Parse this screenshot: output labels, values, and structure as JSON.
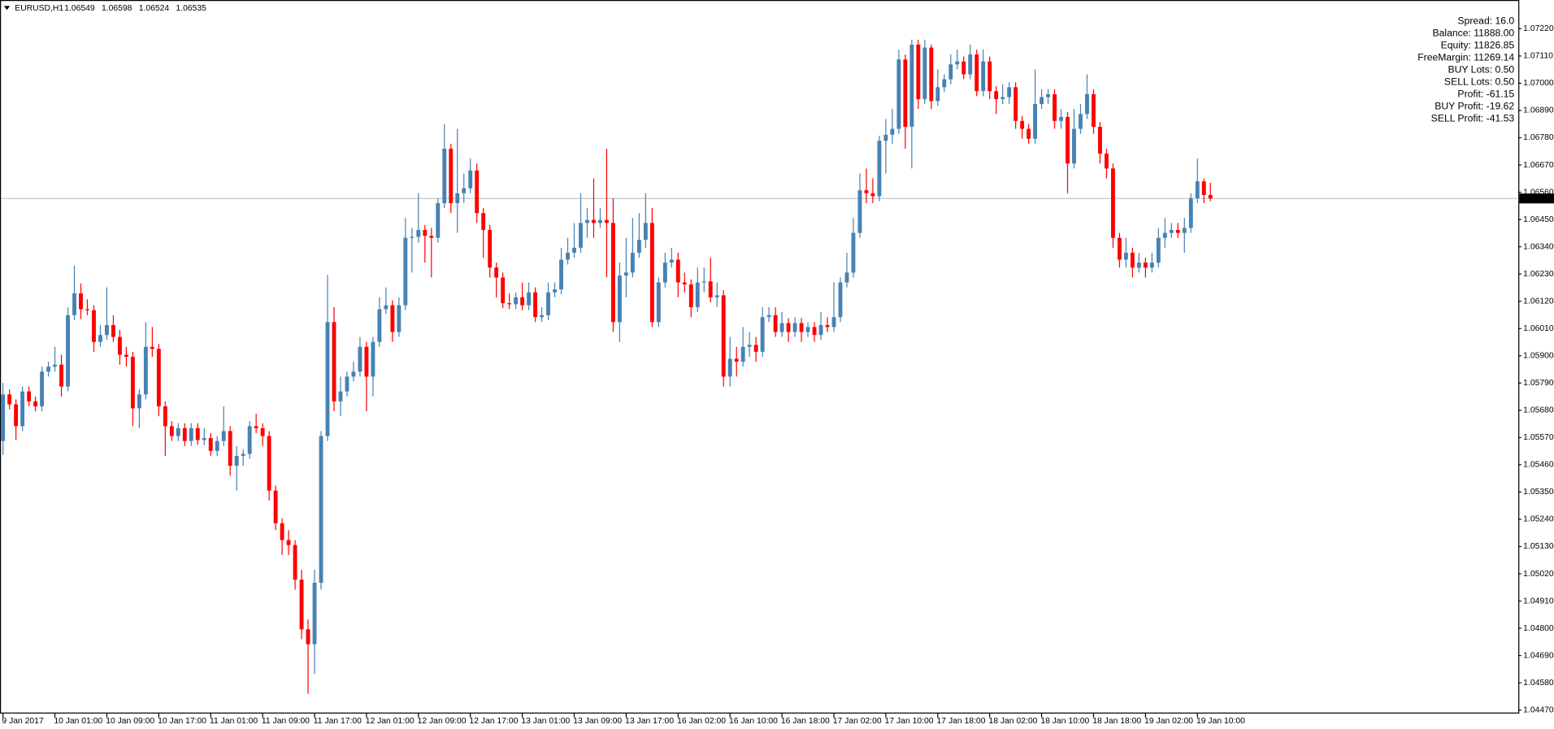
{
  "chart_data": {
    "type": "candlestick",
    "header": {
      "symbol": "EURUSD,H1",
      "ohlc": [
        1.06549,
        1.06598,
        1.06524,
        1.06535
      ]
    },
    "info": [
      {
        "text": "Spread: 16.0",
        "color": "#1c1c9c"
      },
      {
        "text": "Balance: 11888.00",
        "color": "#1c1c9c"
      },
      {
        "text": "Equity: 11826.85",
        "color": "#1c1c9c"
      },
      {
        "text": "FreeMargin: 11269.14",
        "color": "#1c1c9c"
      },
      {
        "text": "BUY Lots: 0.50",
        "color": "#000000"
      },
      {
        "text": "SELL Lots: 0.50",
        "color": "#000000"
      },
      {
        "text": "Profit: -61.15",
        "color": "#ff0000"
      },
      {
        "text": "BUY Profit: -19.62",
        "color": "#ff0000"
      },
      {
        "text": "SELL Profit: -41.53",
        "color": "#ff0000"
      }
    ],
    "up_color": "#4682b4",
    "down_color": "#ff0000",
    "grid": false,
    "current_price": 1.06535,
    "ylim": [
      1.04456,
      1.07336
    ],
    "yticks": [
      {
        "value": 1.0722,
        "label": "1.07220"
      },
      {
        "value": 1.0711,
        "label": "1.07110"
      },
      {
        "value": 1.07,
        "label": "1.07000"
      },
      {
        "value": 1.0689,
        "label": "1.06890"
      },
      {
        "value": 1.0678,
        "label": "1.06780"
      },
      {
        "value": 1.0667,
        "label": "1.06670"
      },
      {
        "value": 1.0656,
        "label": "1.06560"
      },
      {
        "value": 1.0645,
        "label": "1.06450"
      },
      {
        "value": 1.0634,
        "label": "1.06340"
      },
      {
        "value": 1.0623,
        "label": "1.06230"
      },
      {
        "value": 1.0612,
        "label": "1.06120"
      },
      {
        "value": 1.0601,
        "label": "1.06010"
      },
      {
        "value": 1.059,
        "label": "1.05900"
      },
      {
        "value": 1.0579,
        "label": "1.05790"
      },
      {
        "value": 1.0568,
        "label": "1.05680"
      },
      {
        "value": 1.0557,
        "label": "1.05570"
      },
      {
        "value": 1.0546,
        "label": "1.05460"
      },
      {
        "value": 1.0535,
        "label": "1.05350"
      },
      {
        "value": 1.0524,
        "label": "1.05240"
      },
      {
        "value": 1.0513,
        "label": "1.05130"
      },
      {
        "value": 1.0502,
        "label": "1.05020"
      },
      {
        "value": 1.0491,
        "label": "1.04910"
      },
      {
        "value": 1.048,
        "label": "1.04800"
      },
      {
        "value": 1.0469,
        "label": "1.04690"
      },
      {
        "value": 1.0458,
        "label": "1.04580"
      },
      {
        "value": 1.0447,
        "label": "1.04470"
      }
    ],
    "categories": [
      "9 Jan 2017",
      null,
      null,
      null,
      null,
      null,
      null,
      null,
      "10 Jan 01:00",
      null,
      null,
      null,
      null,
      null,
      null,
      null,
      "10 Jan 09:00",
      null,
      null,
      null,
      null,
      null,
      null,
      null,
      "10 Jan 17:00",
      null,
      null,
      null,
      null,
      null,
      null,
      null,
      "11 Jan 01:00",
      null,
      null,
      null,
      null,
      null,
      null,
      null,
      "11 Jan 09:00",
      null,
      null,
      null,
      null,
      null,
      null,
      null,
      "11 Jan 17:00",
      null,
      null,
      null,
      null,
      null,
      null,
      null,
      "12 Jan 01:00",
      null,
      null,
      null,
      null,
      null,
      null,
      null,
      "12 Jan 09:00",
      null,
      null,
      null,
      null,
      null,
      null,
      null,
      "12 Jan 17:00",
      null,
      null,
      null,
      null,
      null,
      null,
      null,
      "13 Jan 01:00",
      null,
      null,
      null,
      null,
      null,
      null,
      null,
      "13 Jan 09:00",
      null,
      null,
      null,
      null,
      null,
      null,
      null,
      "13 Jan 17:00",
      null,
      null,
      null,
      null,
      null,
      null,
      null,
      "16 Jan 02:00",
      null,
      null,
      null,
      null,
      null,
      null,
      null,
      "16 Jan 10:00",
      null,
      null,
      null,
      null,
      null,
      null,
      null,
      "16 Jan 18:00",
      null,
      null,
      null,
      null,
      null,
      null,
      null,
      "17 Jan 02:00",
      null,
      null,
      null,
      null,
      null,
      null,
      null,
      "17 Jan 10:00",
      null,
      null,
      null,
      null,
      null,
      null,
      null,
      "17 Jan 18:00",
      null,
      null,
      null,
      null,
      null,
      null,
      null,
      "18 Jan 02:00",
      null,
      null,
      null,
      null,
      null,
      null,
      null,
      "18 Jan 10:00",
      null,
      null,
      null,
      null,
      null,
      null,
      null,
      "18 Jan 18:00",
      null,
      null,
      null,
      null,
      null,
      null,
      null,
      "19 Jan 02:00",
      null,
      null,
      null,
      null,
      null,
      null,
      null,
      "19 Jan 10:00",
      null,
      null
    ],
    "open": [
      1.05556,
      1.05744,
      1.05704,
      1.05616,
      1.05756,
      1.05716,
      1.05696,
      1.05836,
      1.05856,
      1.05864,
      1.05776,
      1.06064,
      1.06152,
      1.06088,
      1.06084,
      1.05956,
      1.05984,
      1.06024,
      1.05976,
      1.05904,
      1.05896,
      1.05688,
      1.05744,
      1.05936,
      1.05928,
      1.05696,
      1.05616,
      1.05576,
      1.05608,
      1.05556,
      1.05608,
      1.0556,
      1.05568,
      1.05516,
      1.05556,
      1.05596,
      1.05456,
      1.05496,
      1.05504,
      1.05616,
      1.05608,
      1.05576,
      1.05356,
      1.05224,
      1.05156,
      1.05136,
      1.04996,
      1.04796,
      1.04736,
      1.04984,
      1.05576,
      1.06036,
      1.05716,
      1.05756,
      1.05816,
      1.05836,
      1.05936,
      1.05816,
      1.05956,
      1.06088,
      1.06104,
      1.05996,
      1.06104,
      1.06376,
      1.0638,
      1.06408,
      1.06384,
      1.06376,
      1.06516,
      1.06736,
      1.06516,
      1.06556,
      1.06576,
      1.06648,
      1.06476,
      1.06408,
      1.06256,
      1.06216,
      1.06112,
      1.06108,
      1.06136,
      1.06104,
      1.06156,
      1.06056,
      1.06064,
      1.06156,
      1.06168,
      1.06288,
      1.06316,
      1.06336,
      1.06436,
      1.06448,
      1.06436,
      1.06448,
      1.06436,
      1.06036,
      1.06224,
      1.06236,
      1.06316,
      1.06368,
      1.06436,
      1.06036,
      1.06196,
      1.06276,
      1.06288,
      1.06196,
      1.06188,
      1.06096,
      1.06196,
      1.062,
      1.06136,
      1.06144,
      1.05816,
      1.05888,
      1.05876,
      1.05936,
      1.05944,
      1.05916,
      1.06056,
      1.06064,
      1.05996,
      1.06032,
      1.05996,
      1.06032,
      1.05996,
      1.06016,
      1.05984,
      1.06024,
      1.06016,
      1.06056,
      1.06196,
      1.06236,
      1.06396,
      1.06568,
      1.06556,
      1.06544,
      1.06768,
      1.06792,
      1.06816,
      1.07096,
      1.06824,
      1.07156,
      1.06936,
      1.07144,
      1.06928,
      1.06984,
      1.07016,
      1.07076,
      1.07088,
      1.07036,
      1.07116,
      1.06968,
      1.07088,
      1.06968,
      1.06936,
      1.06944,
      1.06984,
      1.06848,
      1.06816,
      1.06776,
      1.06916,
      1.06944,
      1.06956,
      1.06848,
      1.06864,
      1.06676,
      1.06816,
      1.06876,
      1.06956,
      1.06824,
      1.06716,
      1.06656,
      1.06376,
      1.06288,
      1.06316,
      1.06256,
      1.06276,
      1.06256,
      1.06276,
      1.06376,
      1.06396,
      1.06408,
      1.06396,
      1.06416,
      1.06536,
      1.06604,
      1.06549
    ],
    "high": [
      1.0579,
      1.05764,
      1.05724,
      1.05776,
      1.05776,
      1.05736,
      1.05856,
      1.05876,
      1.05936,
      1.05904,
      1.06096,
      1.06264,
      1.06192,
      1.06128,
      1.06104,
      1.06024,
      1.06176,
      1.06064,
      1.06004,
      1.05936,
      1.05916,
      1.05764,
      1.06036,
      1.06016,
      1.05948,
      1.05716,
      1.05636,
      1.05628,
      1.05628,
      1.05628,
      1.05628,
      1.05608,
      1.05588,
      1.05576,
      1.05696,
      1.05616,
      1.05536,
      1.05524,
      1.05636,
      1.05666,
      1.05628,
      1.05596,
      1.05376,
      1.05244,
      1.05196,
      1.05156,
      1.05036,
      1.04836,
      1.05036,
      1.05596,
      1.06226,
      1.06096,
      1.05816,
      1.05836,
      1.05876,
      1.05976,
      1.05956,
      1.05976,
      1.06136,
      1.06176,
      1.06124,
      1.06136,
      1.06456,
      1.06416,
      1.06556,
      1.06428,
      1.06416,
      1.06536,
      1.06836,
      1.06756,
      1.06816,
      1.06636,
      1.06696,
      1.06676,
      1.06496,
      1.06428,
      1.06276,
      1.06236,
      1.06152,
      1.06156,
      1.06196,
      1.06196,
      1.06176,
      1.06096,
      1.06196,
      1.06196,
      1.06336,
      1.06376,
      1.06436,
      1.06556,
      1.06496,
      1.06616,
      1.06496,
      1.06736,
      1.06536,
      1.06276,
      1.06376,
      1.06456,
      1.06476,
      1.06556,
      1.06496,
      1.06216,
      1.06316,
      1.06336,
      1.06316,
      1.06236,
      1.06208,
      1.06256,
      1.06256,
      1.06296,
      1.06196,
      1.06164,
      1.05976,
      1.05936,
      1.06016,
      1.05996,
      1.05976,
      1.06096,
      1.06096,
      1.06096,
      1.06076,
      1.06052,
      1.06056,
      1.06052,
      1.06036,
      1.06036,
      1.06076,
      1.06056,
      1.06196,
      1.06216,
      1.06316,
      1.06456,
      1.06636,
      1.06656,
      1.06616,
      1.06788,
      1.06856,
      1.06896,
      1.07136,
      1.07116,
      1.07176,
      1.07176,
      1.07176,
      1.07156,
      1.07056,
      1.07036,
      1.07116,
      1.07136,
      1.07108,
      1.07156,
      1.07136,
      1.07136,
      1.07108,
      1.06988,
      1.06996,
      1.07004,
      1.07004,
      1.06868,
      1.06836,
      1.07056,
      1.06976,
      1.06976,
      1.06976,
      1.06896,
      1.06884,
      1.06896,
      1.06916,
      1.07036,
      1.06976,
      1.06844,
      1.06736,
      1.06676,
      1.06396,
      1.06376,
      1.06336,
      1.06316,
      1.06296,
      1.06316,
      1.06416,
      1.06456,
      1.06436,
      1.06436,
      1.06456,
      1.06556,
      1.06696,
      1.06616,
      1.06598
    ],
    "low": [
      1.055,
      1.05684,
      1.0556,
      1.05596,
      1.05696,
      1.05676,
      1.05676,
      1.05816,
      1.05836,
      1.05736,
      1.05756,
      1.06044,
      1.06048,
      1.06064,
      1.05916,
      1.05936,
      1.05964,
      1.05956,
      1.05864,
      1.05856,
      1.05616,
      1.05608,
      1.05724,
      1.05896,
      1.05656,
      1.05496,
      1.05556,
      1.05556,
      1.05536,
      1.05536,
      1.0554,
      1.0554,
      1.05496,
      1.05496,
      1.05536,
      1.05416,
      1.05356,
      1.05456,
      1.05484,
      1.05588,
      1.05536,
      1.05316,
      1.05196,
      1.05096,
      1.05096,
      1.04956,
      1.04756,
      1.04536,
      1.04616,
      1.04956,
      1.05556,
      1.05676,
      1.05656,
      1.05736,
      1.05796,
      1.05816,
      1.05676,
      1.05736,
      1.05936,
      1.06068,
      1.05956,
      1.05976,
      1.06084,
      1.06236,
      1.06356,
      1.06276,
      1.06216,
      1.06356,
      1.06496,
      1.06476,
      1.06396,
      1.06516,
      1.06556,
      1.06436,
      1.06296,
      1.06216,
      1.06136,
      1.06092,
      1.06088,
      1.06088,
      1.06084,
      1.06084,
      1.06036,
      1.06036,
      1.06044,
      1.06136,
      1.06148,
      1.06268,
      1.06296,
      1.06316,
      1.06376,
      1.06376,
      1.06416,
      1.06216,
      1.05996,
      1.05956,
      1.06136,
      1.06216,
      1.06296,
      1.06336,
      1.06016,
      1.06016,
      1.06176,
      1.06256,
      1.06136,
      1.06156,
      1.06056,
      1.06076,
      1.06156,
      1.06116,
      1.06096,
      1.05776,
      1.05776,
      1.05816,
      1.05856,
      1.05896,
      1.05876,
      1.05896,
      1.06036,
      1.05976,
      1.05976,
      1.05956,
      1.05976,
      1.05956,
      1.05976,
      1.05956,
      1.05964,
      1.05996,
      1.05996,
      1.06036,
      1.06176,
      1.06216,
      1.06376,
      1.06516,
      1.06516,
      1.06524,
      1.06636,
      1.06756,
      1.06796,
      1.06736,
      1.06656,
      1.06896,
      1.06916,
      1.06896,
      1.06908,
      1.06964,
      1.06996,
      1.07056,
      1.07016,
      1.07016,
      1.06948,
      1.06948,
      1.06936,
      1.06876,
      1.06916,
      1.06916,
      1.06816,
      1.06776,
      1.06756,
      1.06756,
      1.06896,
      1.06916,
      1.06816,
      1.06816,
      1.06556,
      1.06656,
      1.06796,
      1.06856,
      1.06796,
      1.06676,
      1.06616,
      1.06336,
      1.06256,
      1.06256,
      1.06216,
      1.06236,
      1.06216,
      1.06236,
      1.06256,
      1.06336,
      1.06376,
      1.06376,
      1.06316,
      1.06396,
      1.06516,
      1.06516,
      1.06524
    ],
    "close": [
      1.05744,
      1.05704,
      1.05616,
      1.05756,
      1.05716,
      1.05696,
      1.05836,
      1.05856,
      1.05864,
      1.05776,
      1.06064,
      1.06152,
      1.06088,
      1.06084,
      1.05956,
      1.05984,
      1.06024,
      1.05976,
      1.05904,
      1.05896,
      1.05688,
      1.05744,
      1.05936,
      1.05928,
      1.05696,
      1.05616,
      1.05576,
      1.05608,
      1.05556,
      1.05608,
      1.0556,
      1.05568,
      1.05516,
      1.05556,
      1.05596,
      1.05456,
      1.05496,
      1.05504,
      1.05616,
      1.05608,
      1.05576,
      1.05356,
      1.05224,
      1.05156,
      1.05136,
      1.04996,
      1.04796,
      1.04736,
      1.04984,
      1.05576,
      1.06036,
      1.05716,
      1.05756,
      1.05816,
      1.05836,
      1.05936,
      1.05816,
      1.05956,
      1.06088,
      1.06104,
      1.05996,
      1.06104,
      1.06376,
      1.0638,
      1.06408,
      1.06384,
      1.06376,
      1.06516,
      1.06736,
      1.06516,
      1.06556,
      1.06576,
      1.06648,
      1.06476,
      1.06408,
      1.06256,
      1.06216,
      1.06112,
      1.06108,
      1.06136,
      1.06104,
      1.06156,
      1.06056,
      1.06064,
      1.06156,
      1.06168,
      1.06288,
      1.06316,
      1.06336,
      1.06436,
      1.06448,
      1.06436,
      1.06448,
      1.06436,
      1.06036,
      1.06224,
      1.06236,
      1.06316,
      1.06368,
      1.06436,
      1.06036,
      1.06196,
      1.06276,
      1.06288,
      1.06196,
      1.06188,
      1.06096,
      1.06196,
      1.062,
      1.06136,
      1.06144,
      1.05816,
      1.05888,
      1.05876,
      1.05936,
      1.05944,
      1.05916,
      1.06056,
      1.06064,
      1.05996,
      1.06032,
      1.05996,
      1.06032,
      1.05996,
      1.06016,
      1.05984,
      1.06024,
      1.06016,
      1.06056,
      1.06196,
      1.06236,
      1.06396,
      1.06568,
      1.06556,
      1.06544,
      1.06768,
      1.06792,
      1.06816,
      1.07096,
      1.06824,
      1.07156,
      1.06936,
      1.07144,
      1.06928,
      1.06984,
      1.07016,
      1.07076,
      1.07088,
      1.07036,
      1.07116,
      1.06968,
      1.07088,
      1.06968,
      1.06936,
      1.06944,
      1.06984,
      1.06848,
      1.06816,
      1.06776,
      1.06916,
      1.06944,
      1.06956,
      1.06848,
      1.06864,
      1.06676,
      1.06816,
      1.06876,
      1.06956,
      1.06824,
      1.06716,
      1.06656,
      1.06376,
      1.06288,
      1.06316,
      1.06256,
      1.06276,
      1.06256,
      1.06276,
      1.06376,
      1.06396,
      1.06408,
      1.06396,
      1.06416,
      1.06536,
      1.06604,
      1.06549,
      1.06535
    ]
  }
}
